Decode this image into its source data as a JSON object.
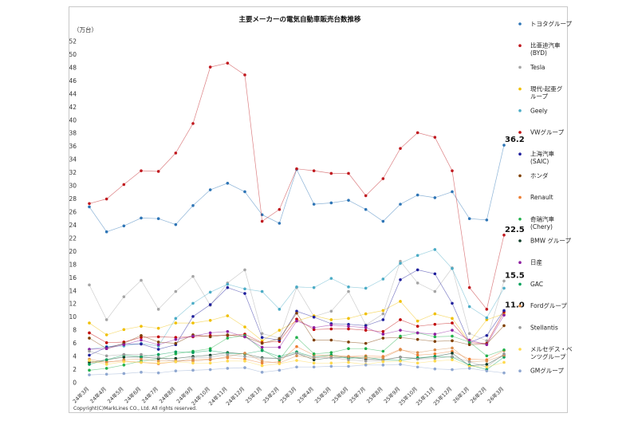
{
  "chart_data": {
    "type": "line",
    "title": "主要メーカーの電気自動車販売台数推移",
    "ylabel": "（万台）",
    "ylim": [
      0,
      52
    ],
    "ytick_step": 2,
    "grid": false,
    "legend_position": "right",
    "categories": [
      "24年3月",
      "24年4月",
      "24年5月",
      "24年6月",
      "24年7月",
      "24年8月",
      "24年9月",
      "24年10月",
      "24年11月",
      "24年12月",
      "25年1月",
      "25年2月",
      "25年3月",
      "25年4月",
      "25年5月",
      "25年6月",
      "25年7月",
      "25年8月",
      "25年9月",
      "25年10月",
      "25年11月",
      "25年12月",
      "26年1月",
      "26年2月",
      "26年3月"
    ],
    "series": [
      {
        "name": "トヨタグループ",
        "color": "#2e75b6",
        "values": [
          26.8,
          23.0,
          23.9,
          25.1,
          25.0,
          24.1,
          27.0,
          29.4,
          30.4,
          29.1,
          25.6,
          24.3,
          32.5,
          27.2,
          27.4,
          27.8,
          26.4,
          24.6,
          27.2,
          28.6,
          28.2,
          29.1,
          25.0,
          24.8,
          36.2
        ]
      },
      {
        "name": "比亜迪汽車",
        "name2": "(BYD)",
        "color": "#c0181e",
        "values": [
          27.3,
          28.0,
          30.2,
          32.3,
          32.2,
          35.0,
          39.5,
          48.1,
          48.7,
          46.9,
          24.6,
          26.4,
          32.6,
          32.3,
          31.9,
          31.9,
          28.5,
          31.1,
          35.7,
          38.1,
          37.4,
          32.3,
          14.5,
          11.2,
          22.5
        ]
      },
      {
        "name": "Tesla",
        "color": "#a5a5a5",
        "values": [
          14.9,
          9.6,
          13.1,
          15.6,
          11.2,
          13.9,
          16.2,
          11.8,
          15.2,
          17.2,
          7.5,
          6.8,
          14.5,
          10.1,
          10.9,
          13.9,
          8.8,
          10.5,
          18.5,
          15.2,
          13.9,
          17.5,
          7.5,
          6.4,
          15.5
        ]
      },
      {
        "name": "現代-起亜グ",
        "name2": "ループ",
        "color": "#f0c000",
        "values": [
          9.1,
          7.3,
          8.1,
          8.6,
          8.3,
          9.1,
          9.1,
          9.5,
          10.2,
          8.5,
          6.4,
          8.0,
          9.4,
          10.2,
          9.6,
          9.8,
          10.5,
          11.0,
          12.4,
          9.4,
          10.5,
          9.8,
          6.2,
          9.6,
          10.5
        ]
      },
      {
        "name": "Geely",
        "color": "#4bacc6",
        "values": [
          5.1,
          5.5,
          5.6,
          6.0,
          5.6,
          9.8,
          12.1,
          13.8,
          15.0,
          14.3,
          13.9,
          11.2,
          14.6,
          14.5,
          15.9,
          14.6,
          14.4,
          15.8,
          18.2,
          19.4,
          20.3,
          17.4,
          11.6,
          9.9,
          14.4
        ]
      },
      {
        "name": "VWグループ",
        "color": "#c00000",
        "values": [
          7.6,
          6.1,
          6.2,
          6.9,
          7.0,
          6.9,
          7.0,
          7.2,
          7.2,
          7.4,
          6.1,
          6.3,
          9.7,
          8.1,
          8.2,
          8.2,
          8.0,
          7.8,
          9.6,
          8.6,
          8.9,
          9.1,
          6.1,
          6.0,
          10.8
        ]
      },
      {
        "name": "上海汽車",
        "name2": "(SAIC)",
        "color": "#1f1f9c",
        "values": [
          4.2,
          5.4,
          5.9,
          5.9,
          5.1,
          5.8,
          10.1,
          11.9,
          14.5,
          13.6,
          6.9,
          6.5,
          10.9,
          10.0,
          9.0,
          8.9,
          8.7,
          9.6,
          15.7,
          17.2,
          16.6,
          12.1,
          6.1,
          7.2,
          11.0
        ]
      },
      {
        "name": "ホンダ",
        "color": "#7f3f00",
        "values": [
          6.8,
          5.2,
          6.0,
          7.2,
          6.2,
          6.0,
          7.3,
          7.0,
          7.3,
          7.0,
          6.0,
          6.7,
          10.6,
          6.5,
          6.5,
          6.2,
          6.0,
          6.8,
          6.9,
          6.6,
          6.3,
          6.4,
          5.8,
          5.9,
          8.7
        ]
      },
      {
        "name": "Renault",
        "color": "#ed7d31",
        "values": [
          3.1,
          3.2,
          3.3,
          3.1,
          2.9,
          3.2,
          3.5,
          3.6,
          3.8,
          3.6,
          3.0,
          3.2,
          5.5,
          4.2,
          4.2,
          4.0,
          4.1,
          4.0,
          5.1,
          4.2,
          4.4,
          4.8,
          3.6,
          3.5,
          4.9
        ]
      },
      {
        "name": "奇瑞汽車",
        "name2": "(Chery)",
        "color": "#22b14c",
        "values": [
          1.9,
          2.2,
          2.7,
          3.3,
          3.6,
          4.4,
          4.8,
          5.2,
          6.8,
          7.2,
          5.0,
          3.5,
          6.9,
          4.4,
          4.6,
          5.2,
          5.2,
          4.8,
          7.1,
          7.6,
          7.0,
          7.1,
          6.2,
          4.1,
          5.0
        ]
      },
      {
        "name": "BMW グループ",
        "color": "#0d3b26",
        "values": [
          3.1,
          3.5,
          3.9,
          3.9,
          3.7,
          3.7,
          4.0,
          4.2,
          4.6,
          4.4,
          3.8,
          3.7,
          4.5,
          3.5,
          3.8,
          3.9,
          3.6,
          3.5,
          3.9,
          3.7,
          4.0,
          4.5,
          2.6,
          2.8,
          4.2
        ]
      },
      {
        "name": "日産",
        "color": "#8e1ea0",
        "values": [
          5.1,
          5.2,
          5.8,
          6.5,
          5.8,
          6.6,
          7.1,
          7.6,
          7.8,
          7.0,
          5.4,
          5.4,
          9.4,
          8.4,
          8.8,
          8.6,
          8.4,
          7.4,
          8.0,
          7.6,
          7.4,
          8.0,
          6.5,
          5.8,
          10.3
        ]
      },
      {
        "name": "GAC",
        "color": "#00a05a",
        "values": [
          2.8,
          3.5,
          4.2,
          4.0,
          4.3,
          4.7,
          4.6,
          4.9,
          4.5,
          4.4,
          4.9,
          4.0,
          4.7,
          3.9,
          4.2,
          3.7,
          3.9,
          3.5,
          3.4,
          3.8,
          4.0,
          3.9,
          2.7,
          2.0,
          3.9
        ]
      },
      {
        "name": "Fordグループ",
        "color": "#d98c4a",
        "values": [
          3.6,
          3.1,
          3.5,
          3.6,
          3.3,
          3.4,
          3.3,
          3.5,
          4.0,
          4.5,
          3.3,
          3.0,
          4.1,
          3.8,
          4.0,
          4.0,
          3.8,
          3.8,
          5.0,
          4.6,
          5.0,
          5.3,
          3.2,
          3.3,
          4.2
        ]
      },
      {
        "name": "Stellantis",
        "color": "#9a9a9a",
        "values": [
          4.8,
          4.1,
          4.3,
          4.3,
          3.9,
          3.2,
          3.8,
          3.9,
          4.3,
          4.0,
          3.7,
          3.7,
          4.5,
          3.9,
          3.8,
          3.5,
          3.3,
          3.4,
          3.9,
          3.6,
          3.7,
          4.0,
          3.2,
          2.4,
          4.4
        ]
      },
      {
        "name": "メルセデス・ベ",
        "name2": "ンツグループ",
        "color": "#ffd94d",
        "values": [
          3.4,
          2.8,
          3.2,
          3.1,
          3.0,
          3.2,
          3.0,
          3.0,
          3.3,
          3.3,
          2.6,
          2.9,
          3.4,
          3.0,
          3.0,
          3.1,
          2.8,
          3.2,
          3.3,
          3.0,
          3.3,
          3.5,
          2.5,
          2.4,
          3.1
        ]
      },
      {
        "name": "GMグループ",
        "color": "#8fa7d0",
        "values": [
          1.2,
          1.3,
          1.4,
          1.6,
          1.5,
          1.8,
          1.9,
          2.0,
          2.2,
          2.3,
          1.6,
          1.9,
          2.4,
          2.4,
          2.5,
          2.5,
          2.7,
          2.7,
          2.8,
          2.4,
          2.1,
          2.0,
          2.2,
          1.8,
          1.5
        ]
      }
    ],
    "data_labels": [
      {
        "series": 0,
        "text": "36.2"
      },
      {
        "series": 1,
        "text": "22.5"
      },
      {
        "series": 2,
        "text": "15.5"
      },
      {
        "series": 6,
        "text": "11.0"
      }
    ],
    "copyright": "Copyright(C)MarkLines CO., Ltd. All rights reserved."
  }
}
